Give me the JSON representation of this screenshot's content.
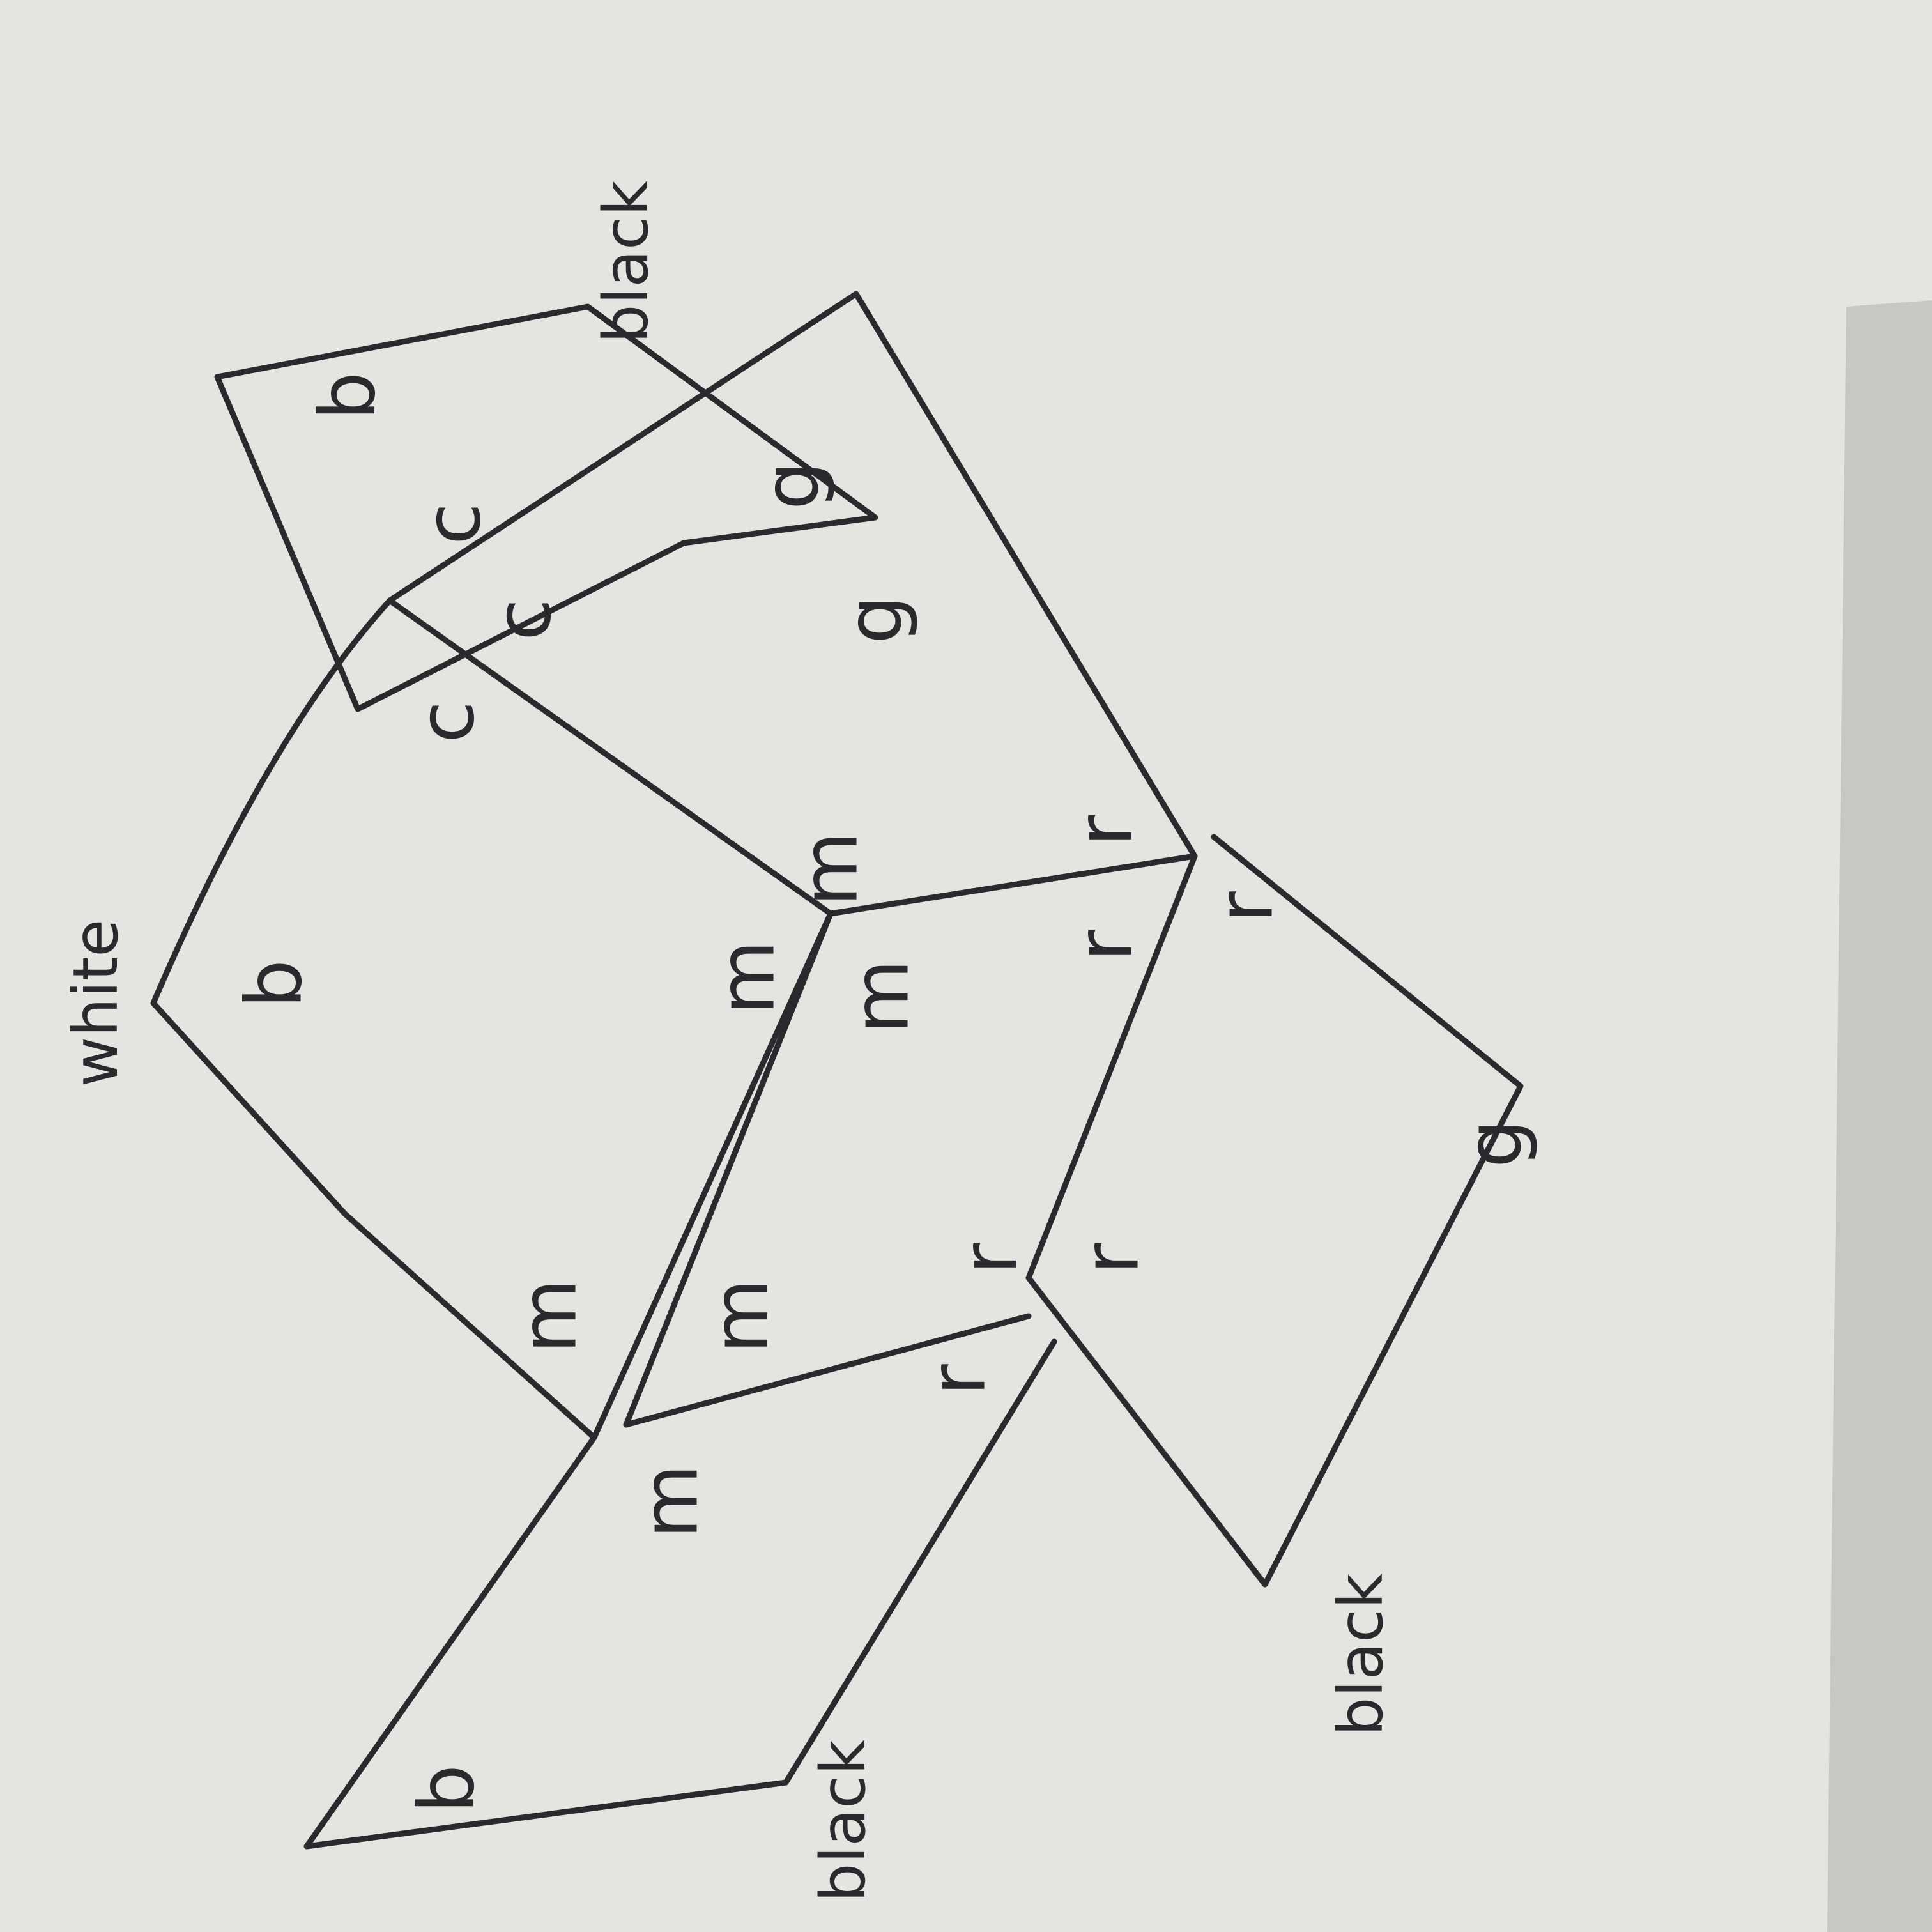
{
  "colors": {
    "paper": "#e6e4e1",
    "ink": "#2a2a2e"
  },
  "labels": {
    "l1": "b",
    "l2": "black",
    "l3": "c",
    "l4": "g",
    "l5": "c",
    "l6": "g",
    "l7": "c",
    "l8": "r",
    "l9": "m",
    "l10": "r",
    "l11": "white",
    "l12": "b",
    "l13": "m",
    "l14": "m",
    "l15": "r",
    "l16": "g",
    "l17": "m",
    "l18": "m",
    "l19": "r",
    "l20": "r",
    "l21": "r",
    "l22": "m",
    "l23": "b",
    "l24": "black",
    "l25": "black"
  }
}
